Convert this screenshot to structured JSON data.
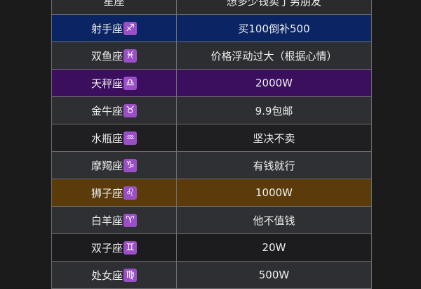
{
  "header": {
    "sign": "星座",
    "price": "想多少钱卖了男朋友"
  },
  "rows": [
    {
      "sign": "射手座",
      "symbol": "♐",
      "price": "买100倒补500",
      "bg": "#0a2464"
    },
    {
      "sign": "双鱼座",
      "symbol": "♓",
      "price": "价格浮动过大（根据心情）",
      "bg": "#2d2e31"
    },
    {
      "sign": "天秤座",
      "symbol": "♎",
      "price": "2000W",
      "bg": "#3b0f5e"
    },
    {
      "sign": "金牛座",
      "symbol": "♉",
      "price": "9.9包邮",
      "bg": "#2e2f32"
    },
    {
      "sign": "水瓶座",
      "symbol": "♒",
      "price": "坚决不卖",
      "bg": "#1f1f21"
    },
    {
      "sign": "摩羯座",
      "symbol": "♑",
      "price": "有钱就行",
      "bg": "#2e3034"
    },
    {
      "sign": "狮子座",
      "symbol": "♌",
      "price": "1000W",
      "bg": "#5b3b0a"
    },
    {
      "sign": "白羊座",
      "symbol": "♈",
      "price": "他不值钱",
      "bg": "#2e3034"
    },
    {
      "sign": "双子座",
      "symbol": "♊",
      "price": "20W",
      "bg": "#1c1c1e"
    },
    {
      "sign": "处女座",
      "symbol": "♍",
      "price": "500W",
      "bg": "#2e2f33"
    }
  ]
}
